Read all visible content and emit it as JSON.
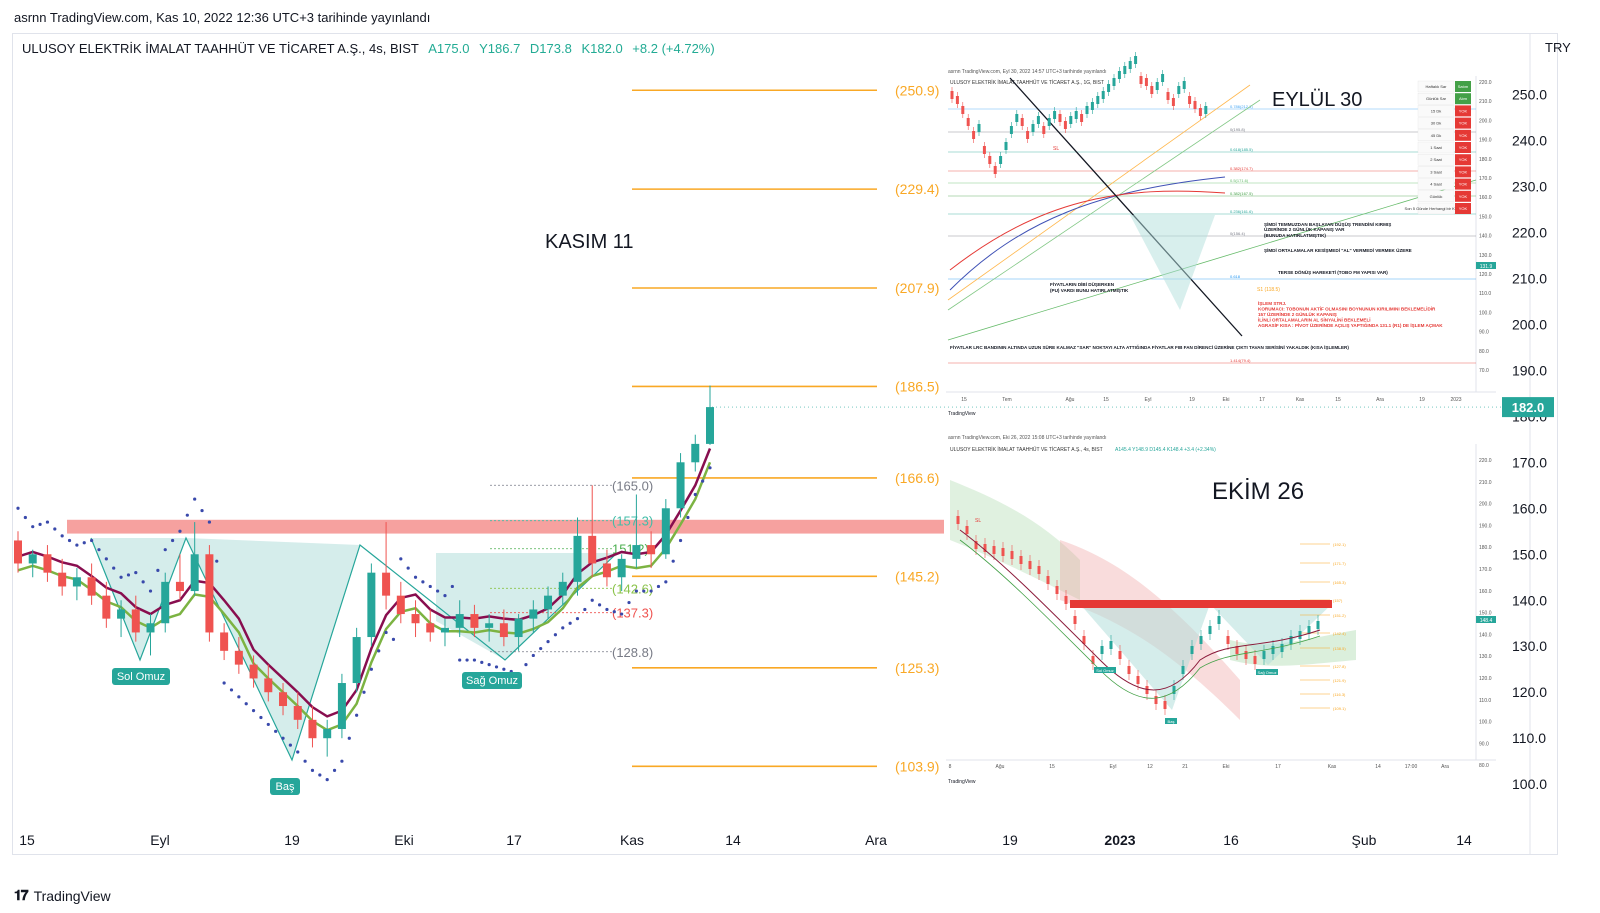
{
  "header": {
    "published_by": "asrnn TradingView.com, Kas 10, 2022 12:36 UTC+3 tarihinde yayınlandı"
  },
  "symbol": {
    "name": "ULUSOY ELEKTRİK İMALAT TAAHHÜT VE TİCARET A.Ş., 4s, BIST",
    "open": "A175.0",
    "high": "Y186.7",
    "low": "D173.8",
    "close": "K182.0",
    "change": "+8.2 (+4.72%)"
  },
  "price_axis": {
    "currency": "TRY",
    "last_price_label": "182.0"
  },
  "brand": {
    "name": "TradingView",
    "logo": "tradingview-logo-icon"
  },
  "annotations": {
    "kasim": "KASIM 11",
    "eylul": "EYLÜL 30",
    "ekim": "EKİM 26",
    "sol_omuz": "Sol Omuz",
    "bas": "Baş",
    "sag_omuz": "Sağ Omuz"
  },
  "inset_eylul": {
    "caption": "asrnn TradingView.com, Eyl 30, 2022 14:57 UTC+3 tarihinde yayınlandı",
    "title": "ULUSOY ELEKTRİK İMALAT TAAHHÜT VE TİCARET A.Ş., 1G, BIST",
    "notes": [
      "ŞİMDİ TEMMUZDAN BAŞLAYAN DÜŞÜŞ TRENDİNİ KIRMIŞ",
      "ÜZERİNDE 2 GÜNLÜK KAPANIŞ VAR",
      "(BUNUDA HATIRLATMIŞTIK)",
      "ŞİMDİ ORTALAMALAR KESİŞMEDİ \"AL\" VERMEDİ VERMEK ÜZERE",
      "TERSE DÖNÜŞ HAREKETİ (TOBO FM YAPISI VAR)",
      "FİYATLARIN DİBİ DÜŞERKEN",
      "(PU) VARDI BUNU HATIRLATMIŞTIK",
      "FİYATLAR LRC BANDININ ALTINDA UZUN SÜRE KALMAZ \"SAR\" NOKTAYI ALTA ATTIĞINDA FİYATLAR FIB FAN DİRENCİ ÜZERİNE ÇIKTI TAVAN SERİSİNİ YAKALDIK (KISA İŞLEMLER)"
    ],
    "strategy": [
      "İŞLEM STRJ.",
      "KORUMACI: TOBONUN AKTİF OLMASINI BOYNUNUN KIRILIMINI BEKLEMELİDİR",
      "157 ÜZERİNDE 2 GÜNLÜK KAPANIŞ",
      "İLİNLİ ORTALAMALARIN AL SİNYALİNİ BEKLEMELİ",
      "AGRASİF KISA : PİVOT ÜZERİNDE AÇILIŞ YAPTIĞINDA 131.1 (R1) DE İŞLEM AÇMAK"
    ],
    "table_rows": [
      {
        "label": "Haftalık Sar",
        "val": "Satım"
      },
      {
        "label": "Günlük Sar",
        "val": "Alım"
      },
      {
        "label": "15 Dk",
        "val": "YOK"
      },
      {
        "label": "30 Dk",
        "val": "YOK"
      },
      {
        "label": "45 Dk",
        "val": "YOK"
      },
      {
        "label": "1 Saat",
        "val": "YOK"
      },
      {
        "label": "2 Saat",
        "val": "YOK"
      },
      {
        "label": "3 Saat",
        "val": "YOK"
      },
      {
        "label": "4 Saat",
        "val": "YOK"
      },
      {
        "label": "Günlük",
        "val": "YOK"
      },
      {
        "label": "Son 5 Günde Herhangi bir Kesişme",
        "val": "YOK"
      }
    ],
    "sl_label": "SL",
    "s1_label": "S1 (118.5)",
    "price_tag": "131.9",
    "x_ticks": [
      "15",
      "Tem",
      "Ağu",
      "15",
      "Eyl",
      "19",
      "Eki",
      "17",
      "Kas",
      "15",
      "Ara",
      "19",
      "2023"
    ],
    "y_ticks": [
      "220.0",
      "210.0",
      "200.0",
      "190.0",
      "180.0",
      "170.0",
      "160.0",
      "150.0",
      "140.0",
      "130.0",
      "120.0",
      "110.0",
      "100.0",
      "90.0",
      "80.0",
      "70.0"
    ],
    "fib_labels": [
      "0.786(212.1)",
      "0(195.8)",
      "0.618(185.5)",
      "0.382(174.7)",
      "0.5(171.6)",
      "0.382(167.5)",
      "0.236(161.6)",
      "0(156.4)",
      "0.618",
      "1.414(79.4)"
    ]
  },
  "inset_ekim": {
    "caption": "asrnn TradingView.com, Eki 26, 2022 15:08 UTC+3 tarihinde yayınlandı",
    "title": "ULUSOY ELEKTRİK İMALAT TAAHHÜT VE TİCARET A.Ş., 4s, BIST",
    "ohlc": "A145.4 Y148.9 D145.4 K148.4 +3.4 (+2.34%)",
    "x_ticks": [
      "8",
      "Ağu",
      "15",
      "Eyl",
      "12",
      "21",
      "Eki",
      "17",
      "Kas",
      "14",
      "17:00",
      "Ara"
    ],
    "y_ticks": [
      "220.0",
      "210.0",
      "200.0",
      "190.0",
      "180.0",
      "170.0",
      "160.0",
      "150.0",
      "140.0",
      "130.0",
      "120.0",
      "110.0",
      "100.0",
      "90.0",
      "80.0"
    ],
    "fib_labels": [
      "(192.1)",
      "(171.7)",
      "(165.3)",
      "(157)",
      "(151.2)",
      "(142.4)",
      "(138.5)",
      "(127.8)",
      "(121.9)",
      "(116.3)",
      "(109.1)"
    ],
    "price_tag": "148.4",
    "sol_omuz": "Sol Omuz",
    "bas": "Baş",
    "sag_omuz": "Sağ Omuz",
    "sl_label": "SL"
  },
  "inset_brand": "TradingView",
  "chart_data": {
    "type": "candlestick",
    "title": "ULUSOY ELEKTRİK İMALAT TAAHHÜT VE TİCARET A.Ş., 4s, BIST",
    "x_ticks": [
      "15",
      "Eyl",
      "19",
      "Eki",
      "17",
      "Kas",
      "14",
      "Ara",
      "19",
      "2023",
      "16",
      "Şub",
      "14"
    ],
    "y_ticks": [
      250.0,
      240.0,
      230.0,
      220.0,
      210.0,
      200.0,
      190.0,
      180.0,
      170.0,
      160.0,
      150.0,
      140.0,
      130.0,
      120.0,
      110.0,
      100.0
    ],
    "y_tick_labels": [
      "250.0",
      "240.0",
      "230.0",
      "220.0",
      "210.0",
      "200.0",
      "190.0",
      "180.0",
      "170.0",
      "160.0",
      "150.0",
      "140.0",
      "130.0",
      "120.0",
      "110.0",
      "100.0"
    ],
    "ylim": [
      97.0,
      254.0
    ],
    "fib_levels": [
      {
        "value": 250.9,
        "label": "(250.9)"
      },
      {
        "value": 229.4,
        "label": "(229.4)"
      },
      {
        "value": 207.9,
        "label": "(207.9)"
      },
      {
        "value": 186.5,
        "label": "(186.5)"
      },
      {
        "value": 166.6,
        "label": "(166.6)"
      },
      {
        "value": 145.2,
        "label": "(145.2)"
      },
      {
        "value": 125.3,
        "label": "(125.3)"
      },
      {
        "value": 103.9,
        "label": "(103.9)"
      }
    ],
    "neckline_zone": [
      154.5,
      157.5
    ],
    "pivot_levels": [
      {
        "value": 165.0,
        "label": "(165.0)",
        "color": "#787b86"
      },
      {
        "value": 157.3,
        "label": "(157.3)",
        "color": "#42bda8"
      },
      {
        "value": 151.2,
        "label": "151.2)",
        "color": "#4caf50"
      },
      {
        "value": 142.6,
        "label": "(142.6)",
        "color": "#8bc34a"
      },
      {
        "value": 137.3,
        "label": "(137.3)",
        "color": "#ef5350"
      },
      {
        "value": 128.8,
        "label": "(128.8)",
        "color": "#787b86"
      }
    ],
    "last_price": 182.0,
    "candles_approx": [
      [
        153.0,
        155.0,
        146.0,
        148.0
      ],
      [
        148.0,
        151.0,
        145.0,
        150.0
      ],
      [
        150.0,
        152.0,
        144.0,
        146.0
      ],
      [
        146.0,
        149.0,
        141.0,
        143.0
      ],
      [
        143.0,
        147.0,
        140.0,
        145.0
      ],
      [
        145.0,
        148.0,
        139.0,
        141.0
      ],
      [
        141.0,
        144.0,
        134.0,
        136.0
      ],
      [
        136.0,
        140.0,
        132.0,
        138.0
      ],
      [
        138.0,
        141.0,
        131.0,
        133.0
      ],
      [
        133.0,
        137.0,
        128.0,
        135.0
      ],
      [
        135.0,
        146.0,
        133.0,
        144.0
      ],
      [
        144.0,
        150.0,
        140.0,
        142.0
      ],
      [
        142.0,
        157.0,
        141.0,
        150.0
      ],
      [
        150.0,
        152.0,
        131.0,
        133.0
      ],
      [
        133.0,
        135.0,
        127.0,
        129.0
      ],
      [
        129.0,
        132.0,
        124.0,
        126.0
      ],
      [
        126.0,
        128.0,
        121.0,
        123.0
      ],
      [
        123.0,
        126.0,
        118.0,
        120.0
      ],
      [
        120.0,
        122.0,
        115.0,
        117.0
      ],
      [
        117.0,
        120.0,
        112.0,
        114.0
      ],
      [
        114.0,
        117.0,
        108.0,
        110.0
      ],
      [
        110.0,
        114.0,
        106.0,
        112.0
      ],
      [
        112.0,
        124.0,
        110.0,
        122.0
      ],
      [
        122.0,
        134.0,
        120.0,
        132.0
      ],
      [
        132.0,
        148.0,
        130.0,
        146.0
      ],
      [
        146.0,
        157.0,
        138.0,
        141.0
      ],
      [
        141.0,
        144.0,
        135.0,
        137.0
      ],
      [
        137.0,
        140.0,
        132.0,
        135.0
      ],
      [
        135.0,
        138.0,
        131.0,
        133.0
      ],
      [
        133.0,
        136.0,
        130.0,
        134.0
      ],
      [
        134.0,
        140.0,
        132.0,
        137.0
      ],
      [
        137.0,
        139.0,
        132.0,
        134.0
      ],
      [
        134.0,
        137.0,
        131.0,
        135.0
      ],
      [
        135.0,
        138.0,
        130.0,
        132.0
      ],
      [
        132.0,
        137.0,
        129.0,
        136.0
      ],
      [
        136.0,
        140.0,
        133.0,
        138.0
      ],
      [
        138.0,
        143.0,
        136.0,
        141.0
      ],
      [
        141.0,
        146.0,
        139.0,
        144.0
      ],
      [
        144.0,
        158.0,
        141.0,
        154.0
      ],
      [
        154.0,
        165.0,
        145.0,
        148.0
      ],
      [
        148.0,
        151.0,
        143.0,
        145.0
      ],
      [
        145.0,
        150.0,
        142.0,
        149.0
      ],
      [
        149.0,
        163.0,
        147.0,
        152.0
      ],
      [
        152.0,
        155.0,
        147.0,
        150.0
      ],
      [
        150.0,
        162.0,
        149.0,
        160.0
      ],
      [
        160.0,
        172.0,
        158.0,
        170.0
      ],
      [
        170.0,
        176.0,
        168.0,
        174.0
      ],
      [
        174.0,
        186.7,
        173.8,
        182.0
      ]
    ]
  }
}
